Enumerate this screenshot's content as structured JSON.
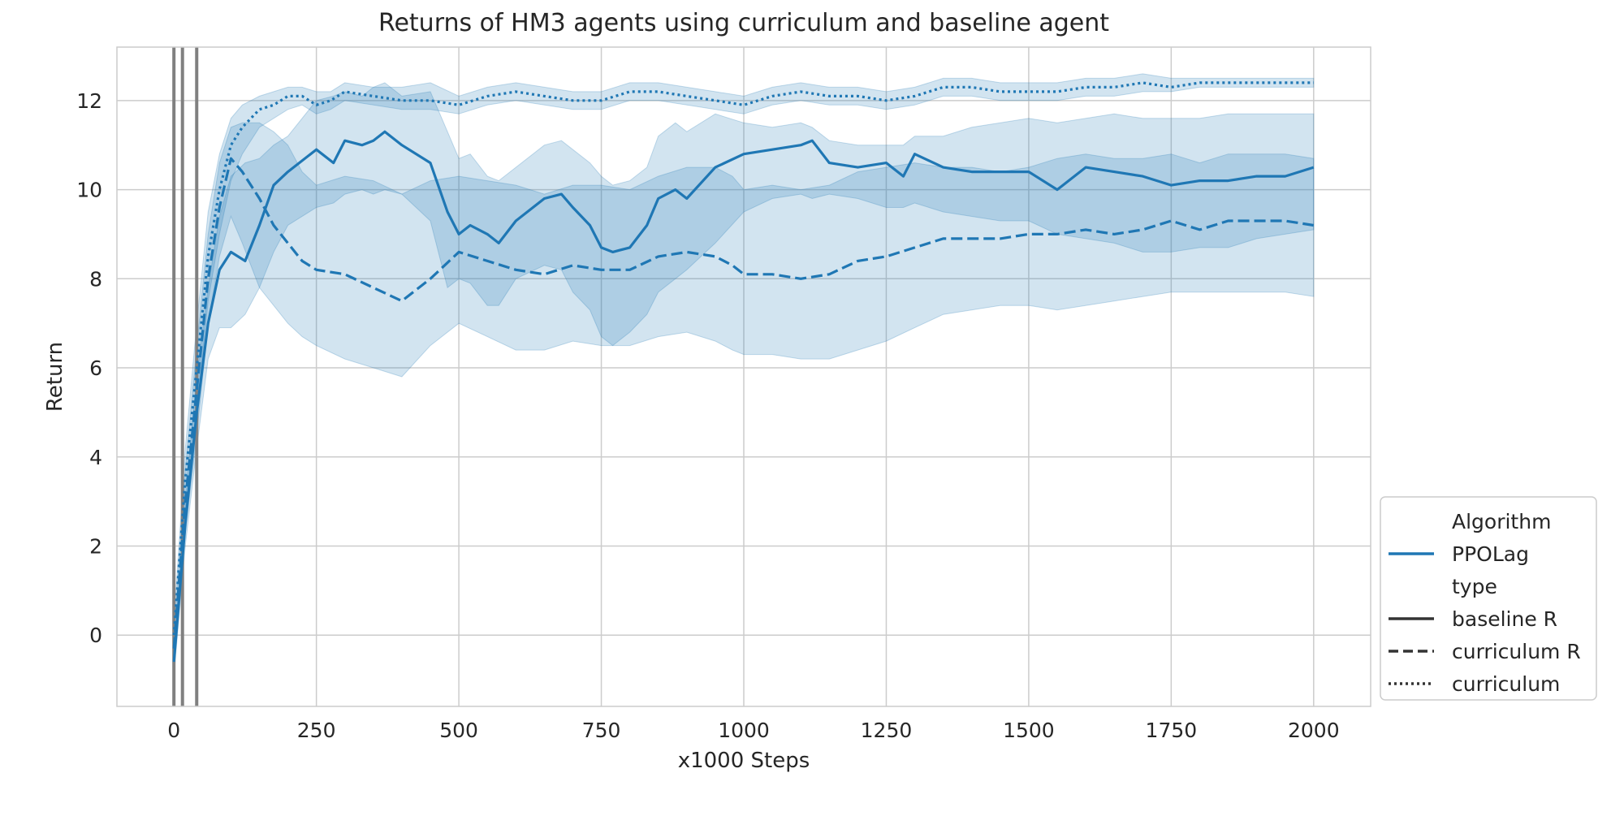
{
  "chart_data": {
    "type": "line",
    "title": "Returns of HM3 agents using curriculum and baseline agent",
    "xlabel": "x1000 Steps",
    "ylabel": "Return",
    "xlim": [
      -100,
      2100
    ],
    "ylim": [
      -1.6,
      13.2
    ],
    "xticks": [
      0,
      250,
      500,
      750,
      1000,
      1250,
      1500,
      1750,
      2000
    ],
    "yticks": [
      0,
      2,
      4,
      6,
      8,
      10,
      12
    ],
    "grid": true,
    "legend_position": "lower-right outside",
    "line_color": "#1f77b4",
    "band_color": "#1f77b4",
    "vertical_markers_x": [
      0,
      15,
      40
    ],
    "vertical_marker_color": "#808080",
    "legend": {
      "entries": [
        {
          "label": "Algorithm",
          "kind": "header"
        },
        {
          "label": "PPOLag",
          "kind": "line",
          "color": "#1f77b4",
          "dash": "solid"
        },
        {
          "label": "type",
          "kind": "header"
        },
        {
          "label": "baseline R",
          "kind": "line",
          "color": "#333333",
          "dash": "solid"
        },
        {
          "label": "curriculum R",
          "kind": "line",
          "color": "#333333",
          "dash": "dashed"
        },
        {
          "label": "curriculum",
          "kind": "line",
          "color": "#333333",
          "dash": "dotted"
        }
      ]
    },
    "series": [
      {
        "name": "baseline R",
        "dash": "solid",
        "x": [
          0,
          20,
          40,
          60,
          80,
          100,
          125,
          150,
          175,
          200,
          250,
          280,
          300,
          330,
          350,
          370,
          400,
          450,
          480,
          500,
          520,
          550,
          570,
          600,
          650,
          680,
          700,
          730,
          750,
          770,
          800,
          830,
          850,
          880,
          900,
          950,
          1000,
          1050,
          1100,
          1120,
          1150,
          1200,
          1250,
          1280,
          1300,
          1350,
          1400,
          1450,
          1500,
          1550,
          1600,
          1650,
          1700,
          1750,
          1800,
          1850,
          1900,
          1950,
          2000
        ],
        "y": [
          -0.6,
          2.5,
          5.0,
          7.0,
          8.2,
          8.6,
          8.4,
          9.2,
          10.1,
          10.4,
          10.9,
          10.6,
          11.1,
          11.0,
          11.1,
          11.3,
          11.0,
          10.6,
          9.5,
          9.0,
          9.2,
          9.0,
          8.8,
          9.3,
          9.8,
          9.9,
          9.6,
          9.2,
          8.7,
          8.6,
          8.7,
          9.2,
          9.8,
          10.0,
          9.8,
          10.5,
          10.8,
          10.9,
          11.0,
          11.1,
          10.6,
          10.5,
          10.6,
          10.3,
          10.8,
          10.5,
          10.4,
          10.4,
          10.4,
          10.0,
          10.5,
          10.4,
          10.3,
          10.1,
          10.2,
          10.2,
          10.3,
          10.3,
          10.5
        ],
        "lower": [
          -0.9,
          2.0,
          4.2,
          6.2,
          6.9,
          6.9,
          7.2,
          7.8,
          8.6,
          9.2,
          9.6,
          9.7,
          9.9,
          10.0,
          9.9,
          10.0,
          9.9,
          9.3,
          7.8,
          8.0,
          7.9,
          7.4,
          7.4,
          8.0,
          8.3,
          8.2,
          7.7,
          7.3,
          6.7,
          6.5,
          6.8,
          7.2,
          7.7,
          8.0,
          8.2,
          8.8,
          9.5,
          9.8,
          9.9,
          9.8,
          9.9,
          9.8,
          9.6,
          9.6,
          9.7,
          9.5,
          9.4,
          9.3,
          9.3,
          9.0,
          8.9,
          8.8,
          8.6,
          8.6,
          8.7,
          8.7,
          8.9,
          9.0,
          9.1
        ],
        "upper": [
          -0.3,
          3.0,
          5.8,
          7.8,
          9.4,
          10.3,
          10.6,
          10.7,
          11.0,
          11.2,
          12.0,
          12.1,
          12.2,
          12.1,
          12.3,
          12.4,
          12.1,
          12.2,
          11.3,
          10.7,
          10.8,
          10.3,
          10.2,
          10.5,
          11.0,
          11.1,
          10.9,
          10.6,
          10.3,
          10.1,
          10.2,
          10.5,
          11.2,
          11.5,
          11.3,
          11.7,
          11.5,
          11.4,
          11.5,
          11.4,
          11.1,
          11.0,
          11.0,
          11.0,
          11.2,
          11.2,
          11.4,
          11.5,
          11.6,
          11.5,
          11.6,
          11.7,
          11.6,
          11.6,
          11.6,
          11.7,
          11.7,
          11.7,
          11.7
        ]
      },
      {
        "name": "curriculum R",
        "dash": "dashed",
        "x": [
          0,
          20,
          40,
          60,
          80,
          100,
          120,
          150,
          175,
          200,
          225,
          250,
          300,
          350,
          400,
          450,
          500,
          550,
          600,
          650,
          700,
          750,
          800,
          850,
          900,
          950,
          980,
          1000,
          1050,
          1100,
          1150,
          1200,
          1250,
          1300,
          1350,
          1400,
          1450,
          1500,
          1550,
          1600,
          1650,
          1700,
          1750,
          1800,
          1850,
          1900,
          1950,
          2000
        ],
        "y": [
          -0.3,
          3.0,
          5.5,
          8.0,
          9.6,
          10.7,
          10.4,
          9.8,
          9.2,
          8.8,
          8.4,
          8.2,
          8.1,
          7.8,
          7.5,
          8.0,
          8.6,
          8.4,
          8.2,
          8.1,
          8.3,
          8.2,
          8.2,
          8.5,
          8.6,
          8.5,
          8.3,
          8.1,
          8.1,
          8.0,
          8.1,
          8.4,
          8.5,
          8.7,
          8.9,
          8.9,
          8.9,
          9.0,
          9.0,
          9.1,
          9.0,
          9.1,
          9.3,
          9.1,
          9.3,
          9.3,
          9.3,
          9.2
        ],
        "lower": [
          -0.6,
          2.3,
          4.5,
          7.0,
          8.5,
          9.4,
          8.8,
          7.8,
          7.4,
          7.0,
          6.7,
          6.5,
          6.2,
          6.0,
          5.8,
          6.5,
          7.0,
          6.7,
          6.4,
          6.4,
          6.6,
          6.5,
          6.5,
          6.7,
          6.8,
          6.6,
          6.4,
          6.3,
          6.3,
          6.2,
          6.2,
          6.4,
          6.6,
          6.9,
          7.2,
          7.3,
          7.4,
          7.4,
          7.3,
          7.4,
          7.5,
          7.6,
          7.7,
          7.7,
          7.7,
          7.7,
          7.7,
          7.6
        ],
        "upper": [
          0.0,
          3.7,
          6.5,
          9.0,
          10.6,
          11.4,
          11.5,
          11.5,
          11.3,
          11.0,
          10.4,
          10.1,
          10.3,
          10.2,
          9.9,
          10.2,
          10.3,
          10.2,
          10.1,
          9.9,
          10.1,
          10.1,
          10.0,
          10.3,
          10.5,
          10.5,
          10.3,
          10.0,
          10.1,
          10.0,
          10.1,
          10.4,
          10.5,
          10.6,
          10.5,
          10.5,
          10.4,
          10.5,
          10.7,
          10.8,
          10.7,
          10.7,
          10.8,
          10.6,
          10.8,
          10.8,
          10.8,
          10.7
        ]
      },
      {
        "name": "curriculum",
        "dash": "dotted",
        "x": [
          0,
          20,
          40,
          60,
          80,
          100,
          120,
          150,
          175,
          200,
          225,
          250,
          275,
          300,
          350,
          400,
          450,
          500,
          550,
          600,
          650,
          700,
          750,
          800,
          850,
          900,
          950,
          1000,
          1050,
          1100,
          1150,
          1200,
          1250,
          1300,
          1350,
          1400,
          1450,
          1500,
          1550,
          1600,
          1650,
          1700,
          1750,
          1800,
          1850,
          1900,
          1950,
          2000
        ],
        "y": [
          0.0,
          3.5,
          6.0,
          8.5,
          10.0,
          11.0,
          11.4,
          11.8,
          11.9,
          12.1,
          12.1,
          11.9,
          12.0,
          12.2,
          12.1,
          12.0,
          12.0,
          11.9,
          12.1,
          12.2,
          12.1,
          12.0,
          12.0,
          12.2,
          12.2,
          12.1,
          12.0,
          11.9,
          12.1,
          12.2,
          12.1,
          12.1,
          12.0,
          12.1,
          12.3,
          12.3,
          12.2,
          12.2,
          12.2,
          12.3,
          12.3,
          12.4,
          12.3,
          12.4,
          12.4,
          12.4,
          12.4,
          12.4
        ],
        "lower": [
          -0.3,
          2.8,
          5.0,
          7.5,
          9.0,
          10.2,
          10.8,
          11.4,
          11.6,
          11.8,
          11.9,
          11.7,
          11.8,
          12.0,
          11.9,
          11.8,
          11.8,
          11.7,
          11.9,
          12.0,
          11.9,
          11.8,
          11.8,
          12.0,
          12.0,
          11.9,
          11.8,
          11.7,
          11.9,
          12.0,
          11.9,
          11.9,
          11.8,
          11.9,
          12.1,
          12.1,
          12.0,
          12.0,
          12.0,
          12.1,
          12.1,
          12.2,
          12.2,
          12.3,
          12.3,
          12.3,
          12.3,
          12.3
        ],
        "upper": [
          0.3,
          4.2,
          7.0,
          9.5,
          10.8,
          11.6,
          11.9,
          12.1,
          12.2,
          12.3,
          12.3,
          12.2,
          12.2,
          12.4,
          12.3,
          12.3,
          12.4,
          12.1,
          12.3,
          12.4,
          12.3,
          12.2,
          12.2,
          12.4,
          12.4,
          12.3,
          12.2,
          12.1,
          12.3,
          12.4,
          12.3,
          12.3,
          12.2,
          12.3,
          12.5,
          12.5,
          12.4,
          12.4,
          12.4,
          12.5,
          12.5,
          12.6,
          12.5,
          12.5,
          12.5,
          12.5,
          12.5,
          12.5
        ]
      }
    ]
  }
}
